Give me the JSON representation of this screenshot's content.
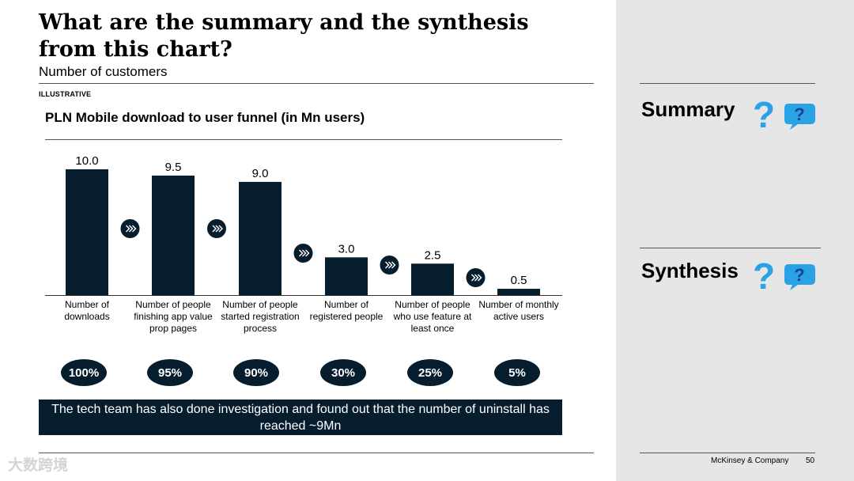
{
  "header": {
    "title": "What are the summary and the synthesis from this chart?",
    "subtitle": "Number of customers",
    "tag": "ILLUSTRATIVE"
  },
  "chart_data": {
    "type": "bar",
    "title": "PLN Mobile download to user funnel (in Mn users)",
    "categories": [
      "Number of downloads",
      "Number of people finishing app value prop pages",
      "Number of people started registration process",
      "Number of registered people",
      "Number of people who use feature at least once",
      "Number of monthly active users"
    ],
    "values": [
      10.0,
      9.5,
      9.0,
      3.0,
      2.5,
      0.5
    ],
    "value_labels": [
      "10.0",
      "9.5",
      "9.0",
      "3.0",
      "2.5",
      "0.5"
    ],
    "percentages": [
      "100%",
      "95%",
      "90%",
      "30%",
      "25%",
      "5%"
    ],
    "ylim": [
      0,
      10
    ],
    "bar_color": "#061d2e",
    "grid": false,
    "legend": "none"
  },
  "callout": {
    "text": "The tech team has also done investigation and found out that the number of uninstall has reached ~9Mn"
  },
  "side": {
    "summary_label": "Summary",
    "synthesis_label": "Synthesis",
    "question_glyph": "?",
    "accent_color": "#29a3e6",
    "icon": "speech-bubble-question-icon"
  },
  "footer": {
    "brand": "McKinsey & Company",
    "page": "50",
    "watermark": "大数跨境"
  }
}
